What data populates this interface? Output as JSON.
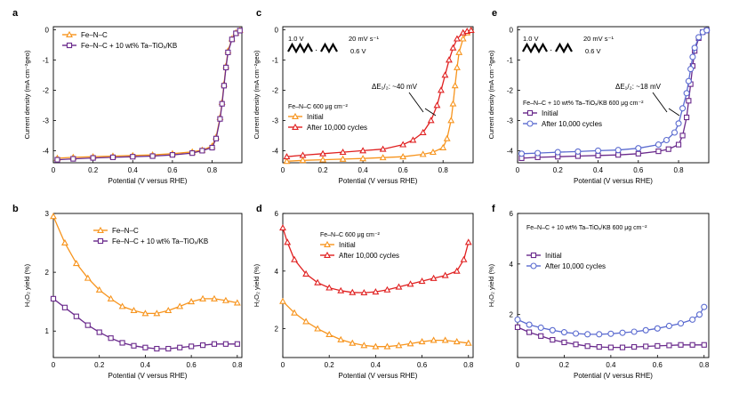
{
  "colors": {
    "fe": "#f7941d",
    "ta": "#6a2a8c",
    "initial": "#f7941d",
    "after": "#e02020",
    "initial_e": "#6a2a8c",
    "after_e": "#5b6bd0",
    "axis": "#000000"
  },
  "chart_data": [
    {
      "panel": "a",
      "type": "line",
      "xlabel": "Potential (V versus RHE)",
      "ylabel": "Current density (mA cm⁻²geo)",
      "xlim": [
        0,
        0.95
      ],
      "ylim": [
        -4.4,
        0.1
      ],
      "xticks": [
        "0",
        "0.2",
        "0.4",
        "0.6",
        "0.8"
      ],
      "yticks": [
        "0",
        "-1",
        "-2",
        "-3",
        "-4"
      ],
      "legend_position": "top-left",
      "series": [
        {
          "name": "Fe–N–C",
          "marker": "triangle",
          "color": "#f7941d",
          "x": [
            0.02,
            0.1,
            0.2,
            0.3,
            0.4,
            0.5,
            0.6,
            0.7,
            0.75,
            0.8,
            0.82,
            0.84,
            0.85,
            0.86,
            0.87,
            0.88,
            0.9,
            0.92,
            0.94
          ],
          "y": [
            -4.25,
            -4.22,
            -4.2,
            -4.18,
            -4.16,
            -4.14,
            -4.1,
            -4.04,
            -3.98,
            -3.85,
            -3.55,
            -2.9,
            -2.4,
            -1.8,
            -1.2,
            -0.7,
            -0.3,
            -0.1,
            -0.02
          ]
        },
        {
          "name": "Fe–N–C + 10 wt% Ta–TiOₓ/KB",
          "marker": "square",
          "color": "#6a2a8c",
          "x": [
            0.02,
            0.1,
            0.2,
            0.3,
            0.4,
            0.5,
            0.6,
            0.7,
            0.75,
            0.8,
            0.82,
            0.84,
            0.85,
            0.86,
            0.87,
            0.88,
            0.9,
            0.92,
            0.94
          ],
          "y": [
            -4.3,
            -4.27,
            -4.24,
            -4.22,
            -4.2,
            -4.18,
            -4.14,
            -4.08,
            -4.0,
            -3.9,
            -3.6,
            -2.95,
            -2.45,
            -1.85,
            -1.25,
            -0.75,
            -0.32,
            -0.12,
            -0.03
          ]
        }
      ]
    },
    {
      "panel": "b",
      "type": "line",
      "xlabel": "Potential (V versus RHE)",
      "ylabel": "H₂O₂ yield (%)",
      "xlim": [
        0,
        0.82
      ],
      "ylim": [
        0.55,
        3.0
      ],
      "xticks": [
        "0",
        "0.2",
        "0.4",
        "0.6",
        "0.8"
      ],
      "yticks": [
        "1",
        "2",
        "3"
      ],
      "legend_position": "top-right",
      "series": [
        {
          "name": "Fe–N–C",
          "marker": "triangle",
          "color": "#f7941d",
          "x": [
            0.0,
            0.05,
            0.1,
            0.15,
            0.2,
            0.25,
            0.3,
            0.35,
            0.4,
            0.45,
            0.5,
            0.55,
            0.6,
            0.65,
            0.7,
            0.75,
            0.8
          ],
          "y": [
            2.95,
            2.5,
            2.15,
            1.9,
            1.7,
            1.55,
            1.42,
            1.35,
            1.3,
            1.3,
            1.35,
            1.42,
            1.5,
            1.55,
            1.55,
            1.52,
            1.48
          ]
        },
        {
          "name": "Fe–N–C + 10 wt% Ta–TiOₓ/KB",
          "marker": "square",
          "color": "#6a2a8c",
          "x": [
            0.0,
            0.05,
            0.1,
            0.15,
            0.2,
            0.25,
            0.3,
            0.35,
            0.4,
            0.45,
            0.5,
            0.55,
            0.6,
            0.65,
            0.7,
            0.75,
            0.8
          ],
          "y": [
            1.55,
            1.4,
            1.25,
            1.1,
            0.98,
            0.88,
            0.8,
            0.75,
            0.72,
            0.7,
            0.7,
            0.72,
            0.74,
            0.76,
            0.78,
            0.78,
            0.78
          ]
        }
      ]
    },
    {
      "panel": "c",
      "type": "line",
      "xlabel": "Potential (V versus RHE)",
      "ylabel": "Current density (mA cm⁻²geo)",
      "xlim": [
        0,
        0.95
      ],
      "ylim": [
        -4.4,
        0.1
      ],
      "xticks": [
        "0",
        "0.2",
        "0.4",
        "0.6",
        "0.8"
      ],
      "yticks": [
        "0",
        "-1",
        "-2",
        "-3",
        "-4"
      ],
      "legend_title": "Fe–N–C 600 μg cm⁻²",
      "legend_position": "bottom-left",
      "inset": {
        "start": "1.0 V",
        "end": "0.6 V",
        "rate": "20 mV s⁻¹"
      },
      "annotation": "ΔE₁/₂: ~40 mV",
      "series": [
        {
          "name": "Initial",
          "marker": "triangle",
          "color": "#f7941d",
          "x": [
            0.02,
            0.1,
            0.2,
            0.3,
            0.4,
            0.5,
            0.6,
            0.7,
            0.75,
            0.8,
            0.82,
            0.84,
            0.85,
            0.86,
            0.87,
            0.88,
            0.9,
            0.92,
            0.94
          ],
          "y": [
            -4.35,
            -4.32,
            -4.3,
            -4.28,
            -4.26,
            -4.23,
            -4.2,
            -4.12,
            -4.05,
            -3.9,
            -3.6,
            -3.0,
            -2.45,
            -1.85,
            -1.25,
            -0.75,
            -0.3,
            -0.1,
            -0.02
          ]
        },
        {
          "name": "After 10,000 cycles",
          "marker": "triangle",
          "color": "#e02020",
          "x": [
            0.02,
            0.1,
            0.2,
            0.3,
            0.4,
            0.5,
            0.6,
            0.65,
            0.7,
            0.74,
            0.77,
            0.79,
            0.81,
            0.83,
            0.85,
            0.87,
            0.9,
            0.92,
            0.94
          ],
          "y": [
            -4.2,
            -4.15,
            -4.1,
            -4.05,
            -4.0,
            -3.95,
            -3.8,
            -3.65,
            -3.4,
            -3.0,
            -2.5,
            -2.0,
            -1.5,
            -1.0,
            -0.6,
            -0.3,
            -0.1,
            -0.05,
            -0.02
          ]
        }
      ]
    },
    {
      "panel": "d",
      "type": "line",
      "xlabel": "Potential (V versus RHE)",
      "ylabel": "H₂O₂ yield (%)",
      "xlim": [
        0,
        0.82
      ],
      "ylim": [
        1.0,
        6.0
      ],
      "xticks": [
        "0",
        "0.2",
        "0.4",
        "0.6",
        "0.8"
      ],
      "yticks": [
        "2",
        "4",
        "6"
      ],
      "legend_title": "Fe–N–C 600 μg cm⁻²",
      "legend_position": "top-center",
      "series": [
        {
          "name": "Initial",
          "marker": "triangle",
          "color": "#f7941d",
          "x": [
            0.0,
            0.05,
            0.1,
            0.15,
            0.2,
            0.25,
            0.3,
            0.35,
            0.4,
            0.45,
            0.5,
            0.55,
            0.6,
            0.65,
            0.7,
            0.75,
            0.8
          ],
          "y": [
            2.95,
            2.55,
            2.25,
            2.0,
            1.8,
            1.62,
            1.5,
            1.42,
            1.38,
            1.38,
            1.42,
            1.48,
            1.55,
            1.6,
            1.6,
            1.55,
            1.5
          ]
        },
        {
          "name": "After 10,000 cycles",
          "marker": "triangle",
          "color": "#e02020",
          "x": [
            0.0,
            0.02,
            0.05,
            0.1,
            0.15,
            0.2,
            0.25,
            0.3,
            0.35,
            0.4,
            0.45,
            0.5,
            0.55,
            0.6,
            0.65,
            0.7,
            0.75,
            0.78,
            0.8
          ],
          "y": [
            5.5,
            5.0,
            4.4,
            3.9,
            3.6,
            3.42,
            3.32,
            3.26,
            3.25,
            3.28,
            3.35,
            3.45,
            3.55,
            3.65,
            3.75,
            3.85,
            4.0,
            4.4,
            5.0
          ]
        }
      ]
    },
    {
      "panel": "e",
      "type": "line",
      "xlabel": "Potential (V versus RHE)",
      "ylabel": "Current density (mA cm⁻²geo)",
      "xlim": [
        0,
        0.95
      ],
      "ylim": [
        -4.4,
        0.1
      ],
      "xticks": [
        "0",
        "0.2",
        "0.4",
        "0.6",
        "0.8"
      ],
      "yticks": [
        "0",
        "-1",
        "-2",
        "-3",
        "-4"
      ],
      "legend_title": "Fe–N–C + 10 wt% Ta–TiOₓ/KB 600 μg cm⁻²",
      "legend_position": "bottom-left",
      "inset": {
        "start": "1.0 V",
        "end": "0.6 V",
        "rate": "20 mV s⁻¹"
      },
      "annotation": "ΔE₁/₂: ~18 mV",
      "series": [
        {
          "name": "Initial",
          "marker": "square",
          "color": "#6a2a8c",
          "x": [
            0.02,
            0.1,
            0.2,
            0.3,
            0.4,
            0.5,
            0.6,
            0.7,
            0.75,
            0.8,
            0.82,
            0.84,
            0.85,
            0.86,
            0.87,
            0.88,
            0.9,
            0.92,
            0.94
          ],
          "y": [
            -4.25,
            -4.22,
            -4.2,
            -4.18,
            -4.16,
            -4.14,
            -4.1,
            -4.02,
            -3.95,
            -3.8,
            -3.5,
            -2.9,
            -2.35,
            -1.8,
            -1.2,
            -0.7,
            -0.28,
            -0.08,
            -0.02
          ]
        },
        {
          "name": "After 10,000 cycles",
          "marker": "circle",
          "color": "#5b6bd0",
          "x": [
            0.02,
            0.1,
            0.2,
            0.3,
            0.4,
            0.5,
            0.6,
            0.7,
            0.74,
            0.78,
            0.8,
            0.82,
            0.84,
            0.85,
            0.86,
            0.87,
            0.88,
            0.9,
            0.92,
            0.94
          ],
          "y": [
            -4.1,
            -4.08,
            -4.05,
            -4.03,
            -4.0,
            -3.98,
            -3.92,
            -3.8,
            -3.65,
            -3.4,
            -3.1,
            -2.6,
            -2.1,
            -1.7,
            -1.3,
            -0.9,
            -0.6,
            -0.25,
            -0.08,
            -0.02
          ]
        }
      ]
    },
    {
      "panel": "f",
      "type": "line",
      "xlabel": "Potential (V versus RHE)",
      "ylabel": "H₂O₂ yield (%)",
      "xlim": [
        0,
        0.82
      ],
      "ylim": [
        0.3,
        6.0
      ],
      "xticks": [
        "0",
        "0.2",
        "0.4",
        "0.6",
        "0.8"
      ],
      "yticks": [
        "2",
        "4",
        "6"
      ],
      "legend_title": "Fe–N–C + 10 wt% Ta–TiOₓ/KB 600 μg cm⁻²",
      "legend_position": "top-left",
      "series": [
        {
          "name": "Initial",
          "marker": "square",
          "color": "#6a2a8c",
          "x": [
            0.0,
            0.05,
            0.1,
            0.15,
            0.2,
            0.25,
            0.3,
            0.35,
            0.4,
            0.45,
            0.5,
            0.55,
            0.6,
            0.65,
            0.7,
            0.75,
            0.8
          ],
          "y": [
            1.5,
            1.3,
            1.15,
            1.0,
            0.9,
            0.82,
            0.75,
            0.72,
            0.7,
            0.7,
            0.72,
            0.74,
            0.76,
            0.78,
            0.8,
            0.8,
            0.8
          ]
        },
        {
          "name": "After 10,000 cycles",
          "marker": "circle",
          "color": "#5b6bd0",
          "x": [
            0.0,
            0.05,
            0.1,
            0.15,
            0.2,
            0.25,
            0.3,
            0.35,
            0.4,
            0.45,
            0.5,
            0.55,
            0.6,
            0.65,
            0.7,
            0.75,
            0.78,
            0.8
          ],
          "y": [
            1.8,
            1.6,
            1.48,
            1.38,
            1.3,
            1.25,
            1.22,
            1.22,
            1.24,
            1.28,
            1.32,
            1.38,
            1.45,
            1.55,
            1.65,
            1.8,
            2.0,
            2.3
          ]
        }
      ]
    }
  ]
}
